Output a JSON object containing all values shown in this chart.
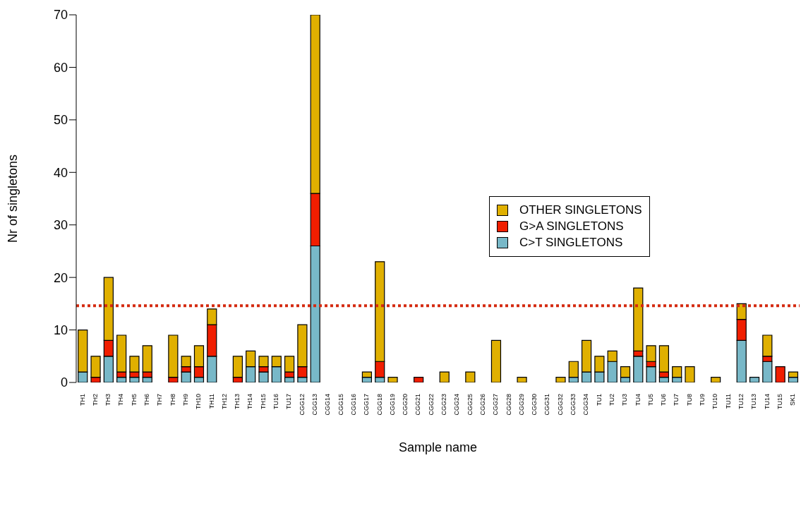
{
  "chart_data": {
    "type": "bar",
    "stacked": true,
    "xlabel": "Sample name",
    "ylabel": "Nr of singletons",
    "categories": [
      "TH1",
      "TH2",
      "TH3",
      "TH4",
      "TH5",
      "TH6",
      "TH7",
      "TH8",
      "TH9",
      "TH10",
      "TH11",
      "TH12",
      "TH13",
      "TH14",
      "TH15",
      "TU16",
      "TU17",
      "CGG12",
      "CGG13",
      "CGG14",
      "CGG15",
      "CGG16",
      "CGG17",
      "CGG18",
      "CGG19",
      "CGG20",
      "CGG21",
      "CGG22",
      "CGG23",
      "CGG24",
      "CGG25",
      "CGG26",
      "CGG27",
      "CGG28",
      "CGG29",
      "CGG30",
      "CGG31",
      "CGG32",
      "CGG33",
      "CGG34",
      "TU1",
      "TU2",
      "TU3",
      "TU4",
      "TU5",
      "TU6",
      "TU7",
      "TU8",
      "TU9",
      "TU10",
      "TU11",
      "TU12",
      "TU13",
      "TU14",
      "TU15",
      "SK1"
    ],
    "series": [
      {
        "name": "C>T SINGLETONS",
        "color": "#78b8c8",
        "values": [
          2,
          0,
          5,
          1,
          1,
          1,
          0,
          0,
          2,
          1,
          5,
          0,
          0,
          3,
          2,
          3,
          1,
          1,
          26,
          0,
          0,
          0,
          1,
          1,
          0,
          0,
          0,
          0,
          0,
          0,
          0,
          0,
          0,
          0,
          0,
          0,
          0,
          0,
          1,
          2,
          2,
          4,
          1,
          5,
          3,
          1,
          1,
          0,
          0,
          0,
          0,
          8,
          1,
          4,
          0,
          1
        ]
      },
      {
        "name": "G>A SINGLETONS",
        "color": "#f01e00",
        "values": [
          0,
          1,
          3,
          1,
          1,
          1,
          0,
          1,
          1,
          2,
          6,
          0,
          1,
          0,
          1,
          0,
          1,
          2,
          10,
          0,
          0,
          0,
          0,
          3,
          0,
          0,
          1,
          0,
          0,
          0,
          0,
          0,
          0,
          0,
          0,
          0,
          0,
          0,
          0,
          0,
          0,
          0,
          0,
          1,
          1,
          1,
          0,
          0,
          0,
          0,
          0,
          4,
          0,
          1,
          3,
          0
        ]
      },
      {
        "name": "OTHER SINGLETONS",
        "color": "#e0b000",
        "values": [
          8,
          4,
          12,
          7,
          3,
          5,
          0,
          8,
          2,
          4,
          3,
          0,
          4,
          3,
          2,
          2,
          3,
          8,
          34,
          0,
          0,
          0,
          1,
          19,
          1,
          0,
          0,
          0,
          2,
          0,
          2,
          0,
          8,
          0,
          1,
          0,
          0,
          1,
          3,
          6,
          3,
          2,
          2,
          12,
          3,
          5,
          2,
          3,
          0,
          1,
          0,
          3,
          0,
          4,
          0,
          1
        ]
      }
    ],
    "ylim": [
      0,
      70
    ],
    "yticks": [
      0,
      10,
      20,
      30,
      40,
      50,
      60,
      70
    ],
    "grid": false,
    "legend": "right",
    "ref_lines": [
      {
        "axis": "y",
        "value": 14.6,
        "color": "#d42a10",
        "line_style": "dotted"
      }
    ]
  }
}
